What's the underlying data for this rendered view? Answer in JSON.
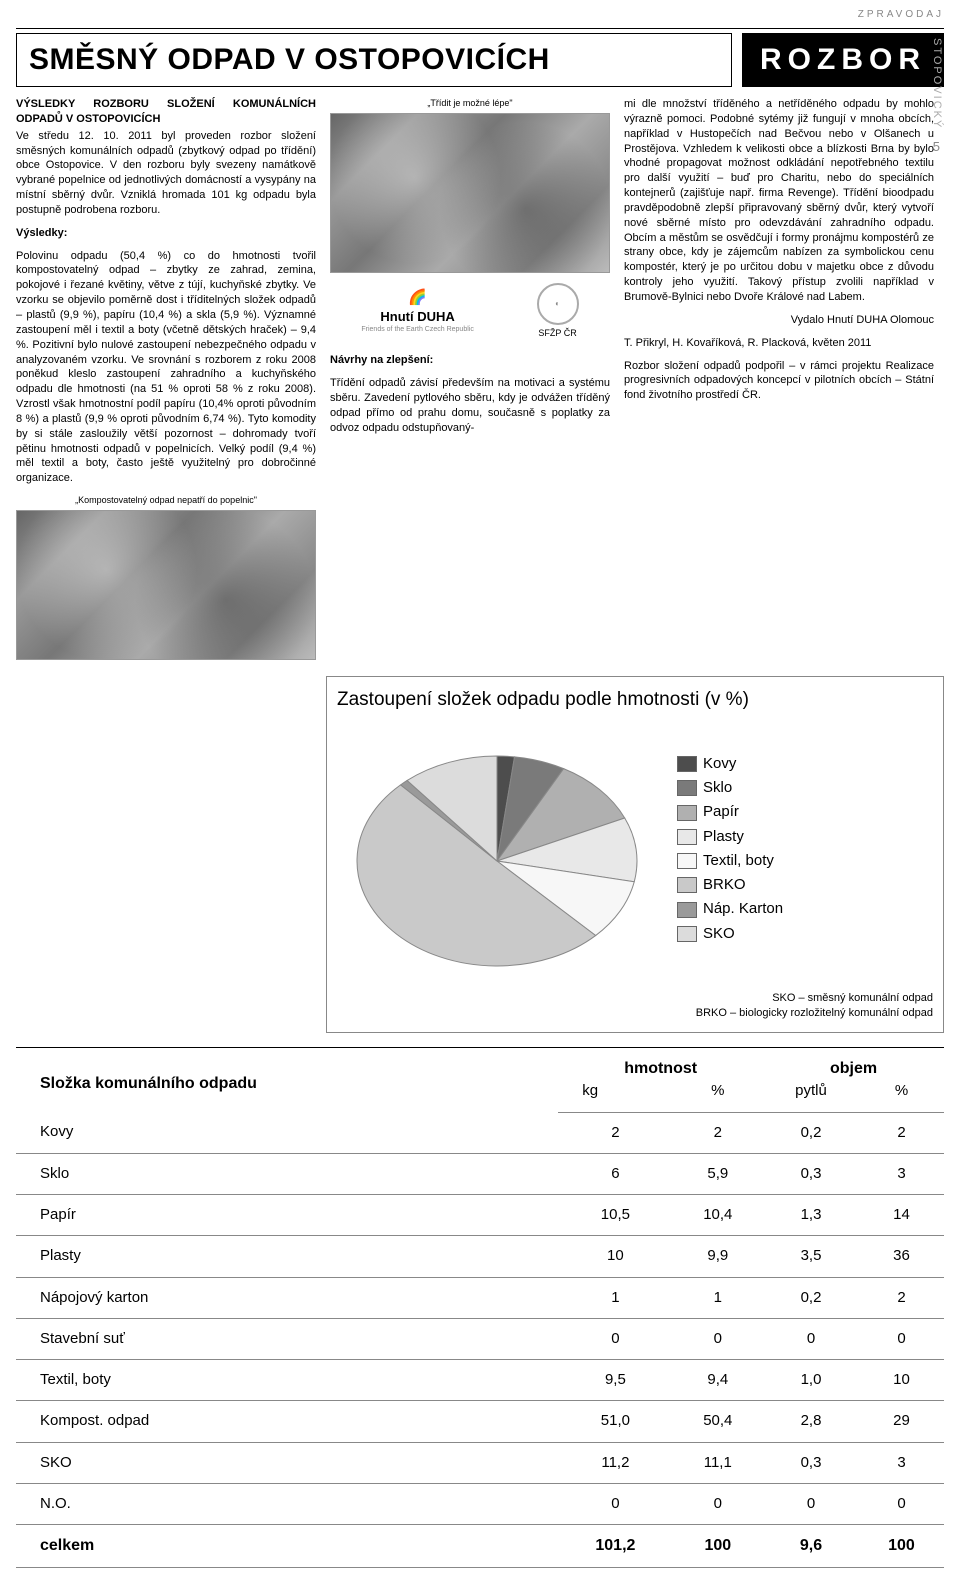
{
  "header": {
    "zpravodaj": "ZPRAVODAJ",
    "side": "STOPOVICKÝ",
    "page": "5"
  },
  "title": "SMĚSNÝ ODPAD V OSTOPOVICÍCH",
  "rozbor": "ROZBOR",
  "intro": {
    "heading": "VÝSLEDKY ROZBORU SLOŽENÍ KOMUNÁLNÍCH ODPADŮ V OSTOPOVICÍCH",
    "p1": "Ve středu 12. 10. 2011 byl proveden rozbor složení směsných komunálních odpadů (zbytkový odpad po třídění) obce Ostopovice. V den rozboru byly svezeny namátkově vybrané popelnice od jednotlivých domácností a vysypány na místní sběrný dvůr. Vzniklá hromada 101 kg odpadu byla postupně podrobena rozboru.",
    "vysledky_h": "Výsledky:",
    "p2": "Polovinu odpadu (50,4 %) co do hmotnosti tvořil kompostovatelný odpad – zbytky ze zahrad, zemina, pokojové i řezané květiny, větve z tújí, kuchyňské zbytky. Ve vzorku se objevilo poměrně dost i tříditelných složek odpadů – plastů (9,9 %), papíru (10,4 %) a skla (5,9 %). Významné zastoupení měl i textil a boty (včetně dětských hraček) – 9,4 %. Pozitivní bylo nulové zastoupení nebezpečného odpadu v analyzovaném vzorku. Ve srovnání s rozborem z roku 2008 poněkud kleslo zastoupení zahradního a kuchyňského odpadu dle hmotnosti (na 51 % oproti 58 % z roku 2008). Vzrostl však hmotnostní podíl papíru (10,4% oproti původním 8 %) a plastů (9,9 % oproti původním 6,74 %). Tyto komodity by si stále zasloužily větší pozornost – dohromady tvoří pětinu hmotnosti odpadů v popelnicích. Velký podíl (9,4 %) měl textil a boty, často ještě využitelný pro dobročinné organizace.",
    "caption1": "„Kompostovatelný odpad nepatří do popelnic\""
  },
  "mid": {
    "caption_top": "„Třídit je možné lépe\"",
    "logo1_name": "Hnutí DUHA",
    "logo1_sub": "Friends of the Earth Czech Republic",
    "logo2": "SFŽP ČR",
    "navrhy_h": "Návrhy na zlepšení:",
    "p3": "Třídění odpadů závisí především na motivaci a systému sběru. Zavedení pytlového sběru, kdy je odvážen tříděný odpad přímo od prahu domu, současně s poplatky za odvoz odpadu odstupňovaný-"
  },
  "right": {
    "p4": "mi dle množství tříděného a netříděného odpadu by mohlo výrazně pomoci. Podobné sytémy již fungují v mnoha obcích, například v Hustopečích nad Bečvou nebo v Olšanech u Prostějova. Vzhledem k velikosti obce a blízkosti Brna by bylo vhodné propagovat možnost odkládání nepotřebného textilu pro další využití – buď pro Charitu, nebo do speciálních kontejnerů (zajišťuje např. firma Revenge). Třídění bioodpadu pravděpodobně zlepší připravovaný sběrný dvůr, který vytvoří nové sběrné místo pro odevzdávání zahradního odpadu. Obcím a městům se osvědčují i formy pronájmu kompostérů ze strany obce, kdy je zájemcům nabízen za symbolickou cenu kompostér, který je po určitou dobu v majetku obce z důvodu kontroly jeho využití. Takový přístup zvolili například v Brumově-Bylnici nebo Dvoře Králové nad Labem.",
    "sig1": "Vydalo Hnutí DUHA Olomouc",
    "sig2": "T. Přikryl, H. Kovaříková, R. Placková, květen 2011",
    "p5": "Rozbor složení odpadů podpořil – v rámci projektu Realizace progresivních odpadových koncepcí v pilotních obcích – Státní fond životního prostředí ČR."
  },
  "chart": {
    "title": "Zastoupení složek odpadu podle hmotnosti (v %)",
    "type": "pie",
    "background": "#ffffff",
    "slices": [
      {
        "label": "Kovy",
        "value": 2.0,
        "color": "#4d4d4d"
      },
      {
        "label": "Sklo",
        "value": 5.9,
        "color": "#7a7a7a"
      },
      {
        "label": "Papír",
        "value": 10.4,
        "color": "#b0b0b0"
      },
      {
        "label": "Plasty",
        "value": 9.9,
        "color": "#e8e8e8"
      },
      {
        "label": "Textil, boty",
        "value": 9.4,
        "color": "#f7f7f7"
      },
      {
        "label": "BRKO",
        "value": 50.4,
        "color": "#c9c9c9"
      },
      {
        "label": "Náp. Karton",
        "value": 1.0,
        "color": "#9a9a9a"
      },
      {
        "label": "SKO",
        "value": 11.1,
        "color": "#dcdcdc"
      }
    ],
    "stroke": "#888888",
    "note1": "SKO – směsný komunální odpad",
    "note2": "BRKO – biologicky rozložitelný komunální odpad"
  },
  "table": {
    "head": {
      "c1": "Složka komunálního odpadu",
      "g1": "hmotnost",
      "g2": "objem",
      "s1": "kg",
      "s2": "%",
      "s3": "pytlů",
      "s4": "%"
    },
    "rows": [
      {
        "name": "Kovy",
        "kg": "2",
        "pctw": "2",
        "bags": "0,2",
        "pctv": "2"
      },
      {
        "name": "Sklo",
        "kg": "6",
        "pctw": "5,9",
        "bags": "0,3",
        "pctv": "3"
      },
      {
        "name": "Papír",
        "kg": "10,5",
        "pctw": "10,4",
        "bags": "1,3",
        "pctv": "14"
      },
      {
        "name": "Plasty",
        "kg": "10",
        "pctw": "9,9",
        "bags": "3,5",
        "pctv": "36"
      },
      {
        "name": "Nápojový karton",
        "kg": "1",
        "pctw": "1",
        "bags": "0,2",
        "pctv": "2"
      },
      {
        "name": "Stavební suť",
        "kg": "0",
        "pctw": "0",
        "bags": "0",
        "pctv": "0"
      },
      {
        "name": "Textil, boty",
        "kg": "9,5",
        "pctw": "9,4",
        "bags": "1,0",
        "pctv": "10"
      },
      {
        "name": "Kompost. odpad",
        "kg": "51,0",
        "pctw": "50,4",
        "bags": "2,8",
        "pctv": "29"
      },
      {
        "name": "SKO",
        "kg": "11,2",
        "pctw": "11,1",
        "bags": "0,3",
        "pctv": "3"
      },
      {
        "name": "N.O.",
        "kg": "0",
        "pctw": "0",
        "bags": "0",
        "pctv": "0"
      }
    ],
    "total": {
      "name": "celkem",
      "kg": "101,2",
      "pctw": "100",
      "bags": "9,6",
      "pctv": "100"
    }
  }
}
